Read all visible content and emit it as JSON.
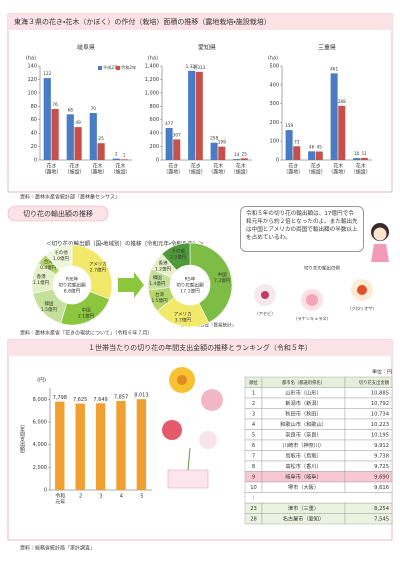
{
  "section1": {
    "title": "東海３県の花き・花木（かぼく）の作付（栽培）面積の推移（露地栽培・施設栽培）",
    "source": "資料：農林水産省統計部『農林業センサス』"
  },
  "section2": {
    "title": "切り花の輸出額の推移",
    "subtitle": "＜切り花の輸出額（国・地域別）の推移（令和元年・令和５年）＞",
    "pie_source": "資料：財務省『貿易統計』",
    "source": "資料：農林水産省『花きの現状について』（令和６年７月）",
    "bubble": "令和５年の切り花の輸出額は、17億円で令和元年から約２倍となったのよ。また輸出先は中国とアメリカの両国で輸出額の半数以上を占めているわ。",
    "photo_title": "切り花の輸出の例",
    "photo_labels": [
      "（アセビ）",
      "（ラナンキュラス）",
      "（グロリオサ）"
    ]
  },
  "section3": {
    "title": "１世帯当たりの切り花の年間支出金額の推移とランキング（令和５年）",
    "source": "資料：総務省統計局『家計調査』",
    "table": {
      "unit": "単位：円",
      "header": [
        "順位",
        "都市名（都道府県名）",
        "切り花支出金額"
      ],
      "rows": [
        [
          "1",
          "山形市（山形）",
          "10,885"
        ],
        [
          "2",
          "新潟市（新潟）",
          "10,792"
        ],
        [
          "3",
          "秋田市（秋田）",
          "10,734"
        ],
        [
          "4",
          "和歌山市（和歌山）",
          "10,223"
        ],
        [
          "5",
          "奈良市（奈良）",
          "10,195"
        ],
        [
          "6",
          "川崎市（神奈川）",
          "9,912"
        ],
        [
          "7",
          "鳥取市（鳥取）",
          "9,738"
        ],
        [
          "8",
          "高松市（香川）",
          "9,725"
        ],
        [
          "9",
          "岐阜市（岐阜）",
          "9,690"
        ],
        [
          "10",
          "堺市（大阪）",
          "9,616"
        ],
        [
          "23",
          "津市（三重）",
          "8,254"
        ],
        [
          "28",
          "名古屋市（愛知）",
          "7,545"
        ]
      ],
      "gap": "⋮"
    }
  },
  "chart_data": [
    {
      "type": "bar",
      "title": "岐阜県",
      "unit": "(ha)",
      "categories": [
        [
          "花き",
          "（露地）"
        ],
        [
          "花き",
          "（施設）"
        ],
        [
          "花木",
          "（露地）"
        ],
        [
          "花木",
          "（施設）"
        ]
      ],
      "series": [
        {
          "name": "平成27年",
          "color": "#4a7cc4",
          "values": [
            122,
            68,
            70,
            2
          ]
        },
        {
          "name": "令和2年",
          "color": "#c8504a",
          "values": [
            76,
            49,
            25,
            1
          ]
        }
      ],
      "ylim": [
        0,
        140
      ],
      "yticks": [
        0,
        20,
        40,
        60,
        80,
        100,
        120,
        140
      ],
      "legend": "upper right"
    },
    {
      "type": "bar",
      "title": "愛知県",
      "unit": "(ha)",
      "categories": [
        [
          "花き",
          "（露地）"
        ],
        [
          "花き",
          "（施設）"
        ],
        [
          "花木",
          "（露地）"
        ],
        [
          "花木",
          "（施設）"
        ]
      ],
      "series": [
        {
          "color": "#4a7cc4",
          "values": [
            477,
            1328,
            258,
            14
          ],
          "value_labels": [
            "477",
            "1,328",
            "258",
            "14"
          ]
        },
        {
          "color": "#c8504a",
          "values": [
            307,
            1313,
            199,
            25
          ],
          "value_labels": [
            "307",
            "1,313",
            "199",
            "25"
          ]
        }
      ],
      "ylim": [
        0,
        1400
      ],
      "yticks": [
        0,
        200,
        400,
        600,
        800,
        {
          "value": 1000,
          "label": "1,000"
        },
        {
          "value": 1200,
          "label": "1,200"
        },
        {
          "value": 1400,
          "label": "1,400"
        }
      ]
    },
    {
      "type": "bar",
      "title": "三重県",
      "unit": "(ha)",
      "categories": [
        [
          "花き",
          "（露地）"
        ],
        [
          "花き",
          "（施設）"
        ],
        [
          "花木",
          "（露地）"
        ],
        [
          "花木",
          "（施設）"
        ]
      ],
      "series": [
        {
          "color": "#4a7cc4",
          "values": [
            159,
            46,
            461,
            10
          ]
        },
        {
          "color": "#c8504a",
          "values": [
            73,
            45,
            288,
            11
          ]
        }
      ],
      "ylim": [
        0,
        500
      ],
      "yticks": [
        0,
        100,
        200,
        300,
        400,
        500
      ]
    },
    {
      "type": "pie",
      "center_label": [
        "R元年",
        "切り花輸出額",
        "8.8億円"
      ],
      "categories": [
        "アメリカ",
        "中国",
        "韓国",
        "香港",
        "台湾",
        "その他"
      ],
      "values": [
        2.7,
        2.1,
        1.5,
        1.1,
        0.4,
        1.0
      ],
      "value_labels": [
        "2.7億円",
        "2.1億円",
        "1.5億円",
        "1.1億円",
        "0.4億円",
        "1.0億円"
      ],
      "colors": [
        "#f2e86a",
        "#8cc63f",
        "#c5e09b",
        "#e4f0c8",
        "#b4d66a",
        "#eef6dc"
      ]
    },
    {
      "type": "pie",
      "center_label": [
        "R5年",
        "切り花輸出額",
        "17.1億円"
      ],
      "categories": [
        "中国",
        "アメリカ",
        "台湾",
        "韓国",
        "香港",
        "その他"
      ],
      "values": [
        7.3,
        3.7,
        1.5,
        1.4,
        1.2,
        2.0
      ],
      "value_labels": [
        "7.3億円",
        "3.7億円",
        "1.5億円",
        "1.4億円",
        "1.2億円",
        "2.0億円"
      ],
      "colors": [
        "#7dbd45",
        "#f2e86a",
        "#b4d66a",
        "#c5e09b",
        "#e4f0c8",
        "#4e9a3a"
      ]
    },
    {
      "type": "bar",
      "unit": "(円)",
      "ylabel": "（年間支出額）",
      "categories": [
        [
          "令和",
          "元年"
        ],
        [
          "2"
        ],
        [
          "3"
        ],
        [
          "4"
        ],
        [
          "5"
        ]
      ],
      "values": [
        7798,
        7625,
        7649,
        7857,
        8013
      ],
      "value_labels": [
        "7,798",
        "7,625",
        "7,649",
        "7,857",
        "8,013"
      ],
      "color": "#f0a030",
      "ylim": [
        0,
        9000
      ],
      "yticks": [
        0,
        {
          "value": 2000,
          "label": "2,000"
        },
        {
          "value": 4000,
          "label": "4,000"
        },
        {
          "value": 6000,
          "label": "6,000"
        },
        {
          "value": 8000,
          "label": "8,000"
        }
      ]
    }
  ]
}
